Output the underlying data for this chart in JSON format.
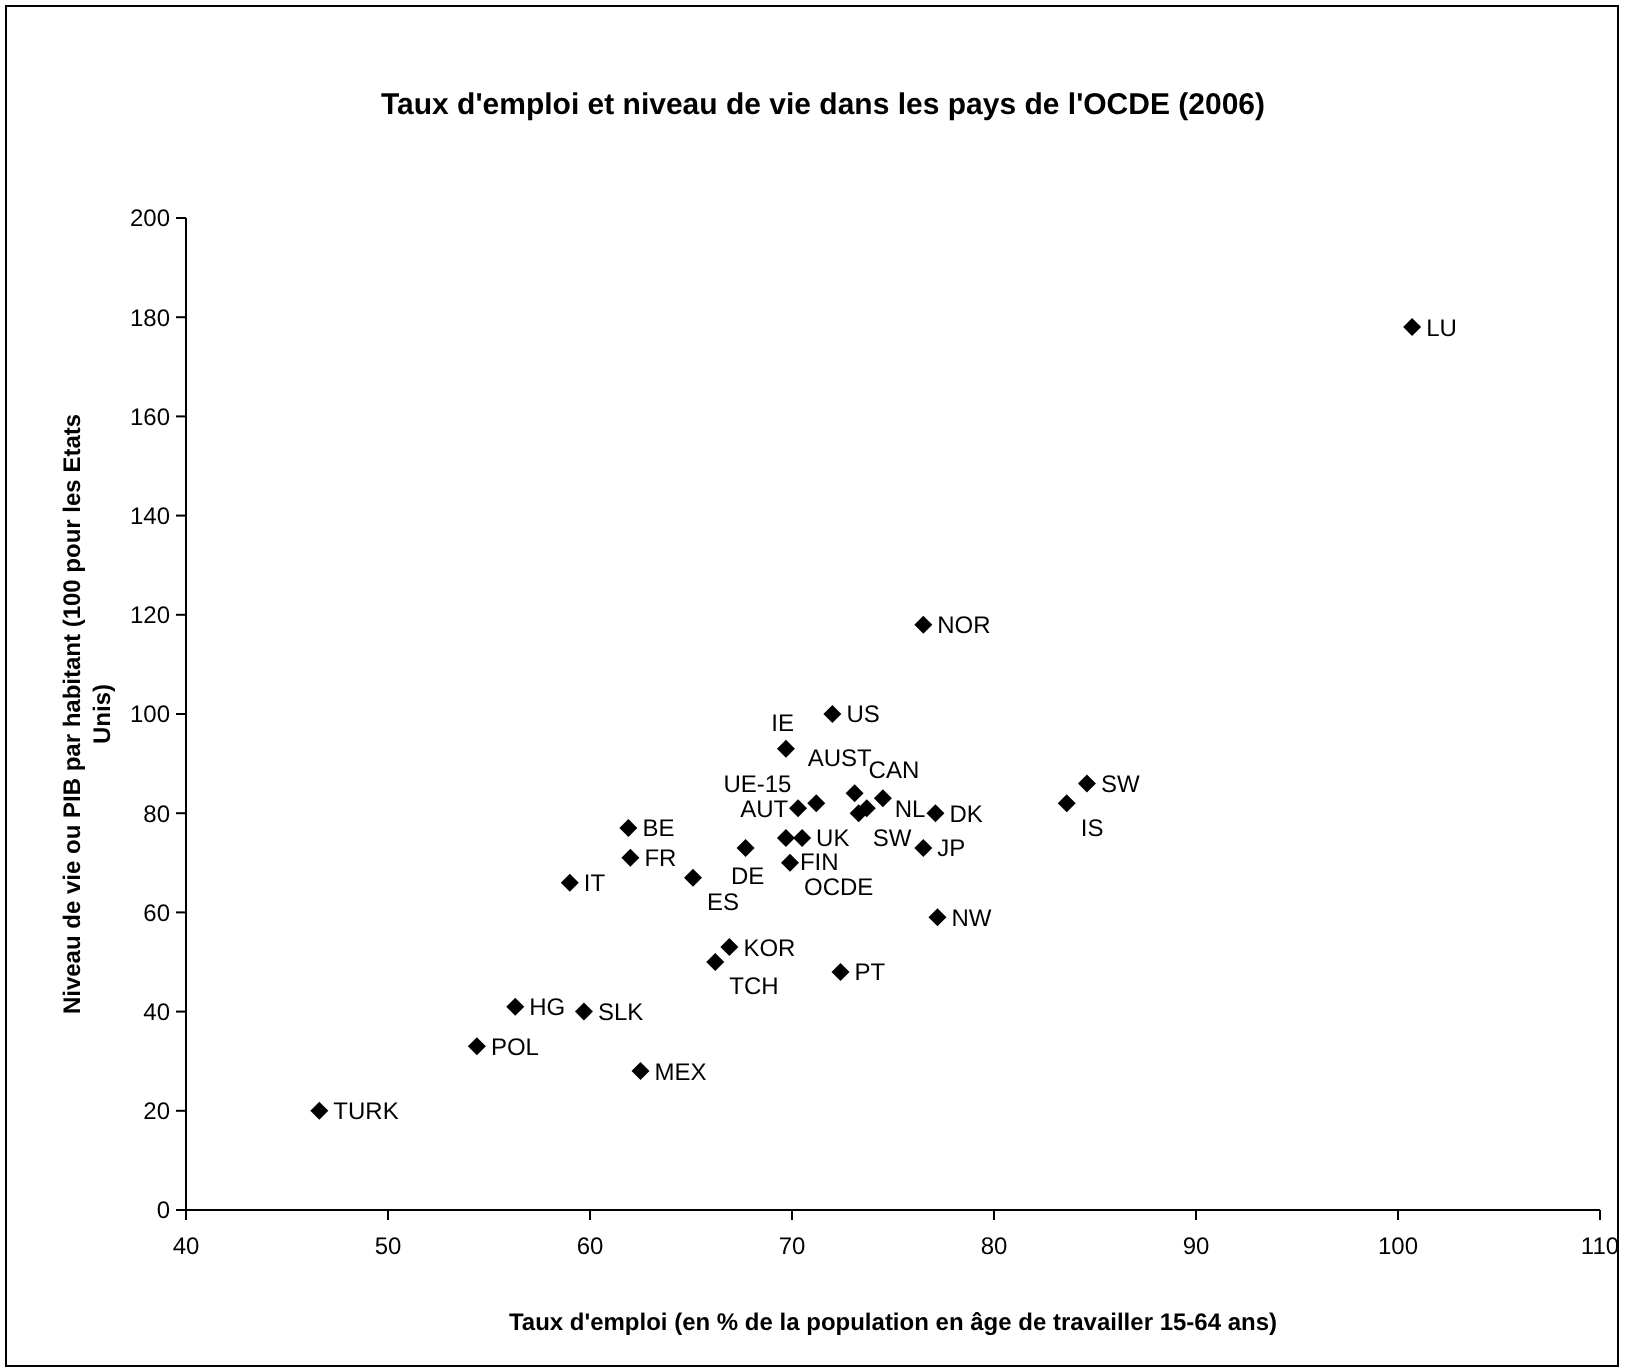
{
  "chart_data": {
    "type": "scatter",
    "title": "Taux d'emploi et niveau de vie dans les pays de l'OCDE (2006)",
    "xlabel": "Taux d'emploi (en % de la population en âge de travailler 15-64 ans)",
    "ylabel": "Niveau de vie ou PIB par habitant (100 pour les Etats Unis)",
    "xlim": [
      40,
      110
    ],
    "xticks": [
      40,
      50,
      60,
      70,
      80,
      90,
      100,
      110
    ],
    "ylim": [
      0,
      200
    ],
    "yticks": [
      0,
      20,
      40,
      60,
      80,
      100,
      120,
      140,
      160,
      180,
      200
    ],
    "grid": false,
    "marker": "diamond",
    "series": [
      {
        "color": "#000000",
        "x": [
          46.6,
          54.4,
          56.3,
          59.7,
          62.5,
          59.0,
          62.0,
          61.9,
          65.1,
          67.7,
          66.9,
          66.2,
          69.9,
          69.7,
          70.5,
          69.7,
          72.0,
          70.3,
          71.2,
          73.1,
          73.3,
          73.7,
          74.5,
          77.1,
          76.5,
          77.2,
          72.4,
          76.5,
          83.6,
          84.6,
          100.7
        ],
        "values": [
          20,
          33,
          41,
          40,
          28,
          66,
          71,
          77,
          67,
          73,
          53,
          50,
          70,
          75,
          75,
          93,
          100,
          81,
          82,
          84,
          80,
          81,
          83,
          80,
          73,
          59,
          48,
          118,
          82,
          86,
          178
        ],
        "value_labels": [
          "TURK",
          "POL",
          "HG",
          "SLK",
          "MEX",
          "IT",
          "FR",
          "BE",
          "ES",
          "DE",
          "KOR",
          "TCH",
          "OCDE",
          "FIN",
          "UK",
          "IE",
          "US",
          "AUT",
          "UE-15",
          "CAN",
          "SW",
          "NL",
          "AUST",
          "DK",
          "JP",
          "NW",
          "PT",
          "NOR",
          "IS",
          "SW",
          "LU"
        ]
      }
    ]
  }
}
